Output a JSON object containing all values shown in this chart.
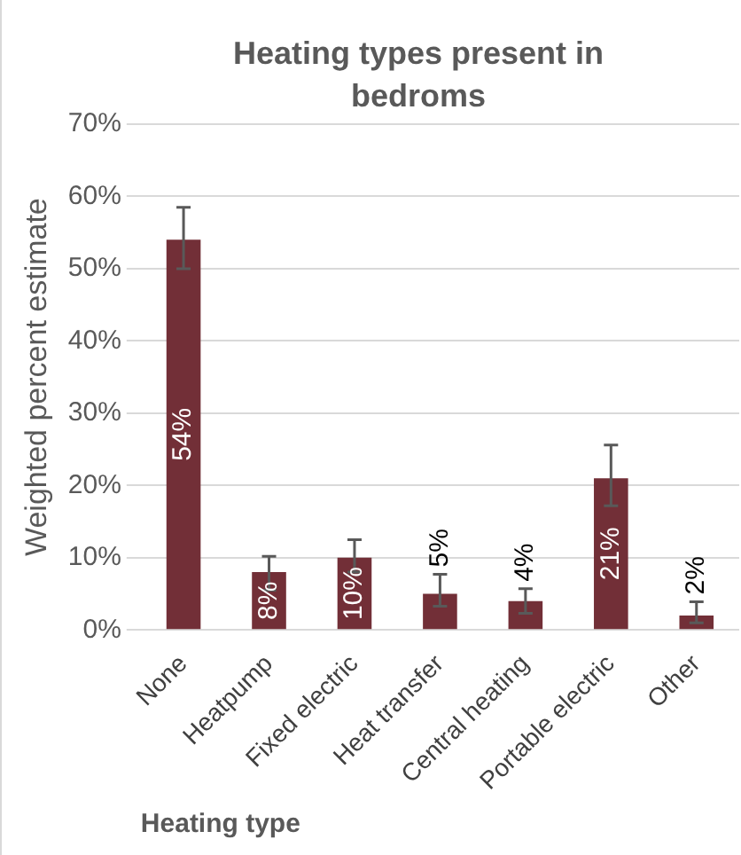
{
  "chart_data": {
    "type": "bar",
    "title": "Heating types present in bedroms",
    "xlabel": "Heating type",
    "ylabel": "Weighted percent estimate",
    "categories": [
      "None",
      "Heatpump",
      "Fixed electric",
      "Heat transfer",
      "Central heating",
      "Portable electric",
      "Other"
    ],
    "values": [
      54,
      8,
      10,
      5,
      4,
      21,
      2
    ],
    "value_labels": [
      "54%",
      "8%",
      "10%",
      "5%",
      "4%",
      "21%",
      "2%"
    ],
    "errors": [
      [
        50,
        58.5
      ],
      [
        5.5,
        10.2
      ],
      [
        8,
        12.5
      ],
      [
        3.3,
        7.7
      ],
      [
        2.3,
        5.7
      ],
      [
        17.2,
        25.6
      ],
      [
        1,
        3.9
      ]
    ],
    "color": "#722f37",
    "ylim": [
      0,
      70
    ],
    "yticks": [
      {
        "value": 0,
        "label": "0%"
      },
      {
        "value": 10,
        "label": "10%"
      },
      {
        "value": 20,
        "label": "20%"
      },
      {
        "value": 30,
        "label": "30%"
      },
      {
        "value": 40,
        "label": "40%"
      },
      {
        "value": 50,
        "label": "50%"
      },
      {
        "value": 60,
        "label": "60%"
      },
      {
        "value": 70,
        "label": "70%"
      }
    ],
    "grid": "y",
    "legend": false
  }
}
